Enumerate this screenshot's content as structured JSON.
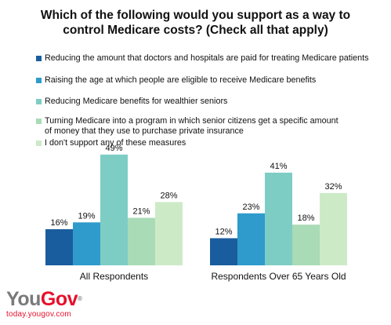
{
  "chart_data": {
    "type": "bar",
    "title_lines": [
      "Which of the following would you support as a way to",
      "control Medicare costs? (Check all that apply)"
    ],
    "categories": [
      "All Respondents",
      "Respondents Over 65 Years Old"
    ],
    "series": [
      {
        "name_lines": [
          "Reducing the amount that doctors and hospitals are paid for treating Medicare patients"
        ],
        "color": "#1a5d9e",
        "values": [
          16,
          12
        ],
        "labels": [
          "16%",
          "12%"
        ]
      },
      {
        "name_lines": [
          "Raising the age at which people are eligible to receive Medicare benefits"
        ],
        "color": "#2e9bcc",
        "values": [
          19,
          23
        ],
        "labels": [
          "19%",
          "23%"
        ]
      },
      {
        "name_lines": [
          "Reducing Medicare benefits for wealthier seniors"
        ],
        "color": "#7dcdc5",
        "values": [
          49,
          41
        ],
        "labels": [
          "49%",
          "41%"
        ]
      },
      {
        "name_lines": [
          "Turning Medicare into a program in which senior citizens get a specific amount",
          "of money that they use to purchase private insurance"
        ],
        "color": "#a9dbb6",
        "values": [
          21,
          18
        ],
        "labels": [
          "21%",
          "18%"
        ]
      },
      {
        "name_lines": [
          "I don't support any of these measures"
        ],
        "color": "#cdeac7",
        "values": [
          28,
          32
        ],
        "labels": [
          "28%",
          "32%"
        ]
      }
    ],
    "legend_position": "top",
    "grid": false,
    "ylim": [
      0,
      55
    ]
  },
  "branding": {
    "logo_you": "You",
    "logo_gov": "Gov",
    "logo_mark": "®",
    "url": "today.yougov.com"
  }
}
